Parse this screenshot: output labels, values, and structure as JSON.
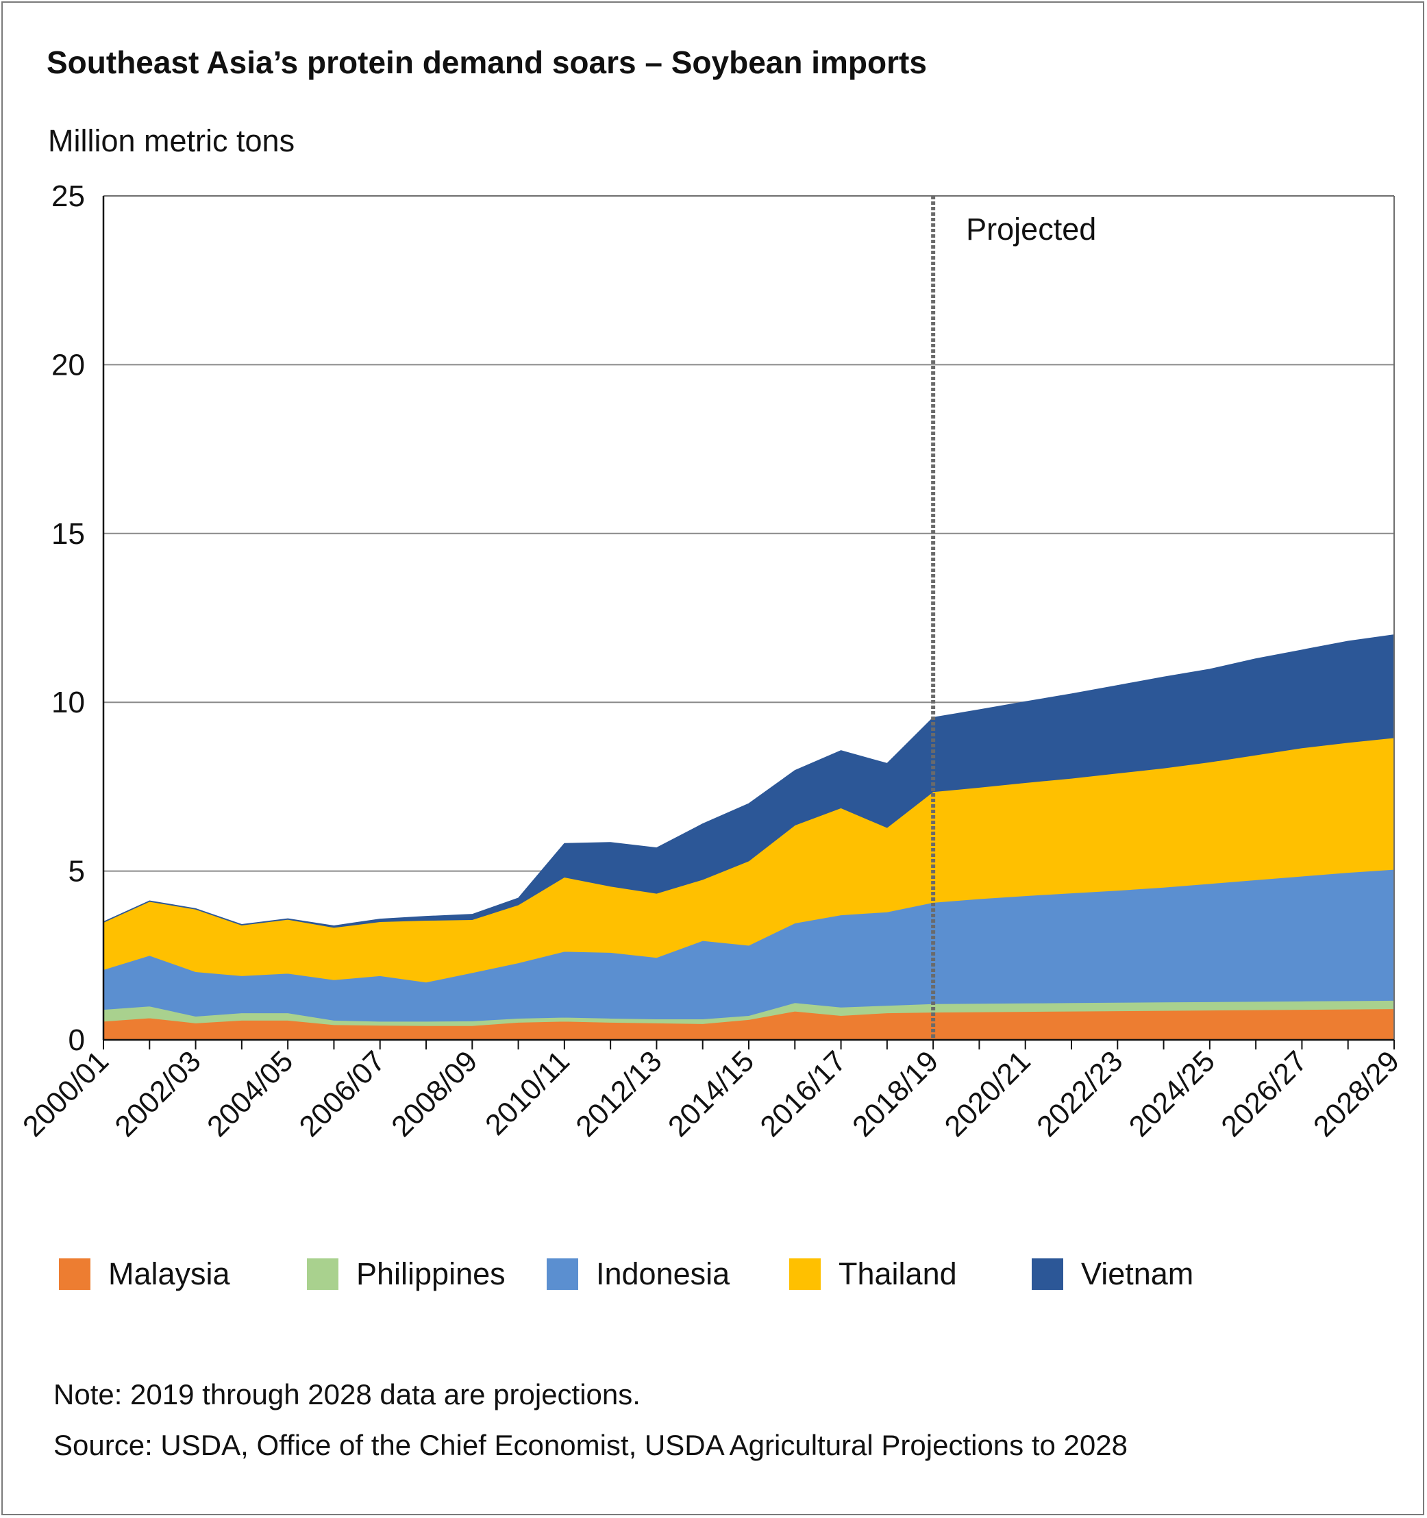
{
  "title": "Southeast Asia’s protein demand soars – Soybean imports",
  "note": "Note: 2019 through 2028 data are projections.",
  "source": "Source: USDA, Office of the Chief Economist, USDA Agricultural Projections to 2028",
  "chart_data": {
    "type": "area",
    "stacked": true,
    "title": "Southeast Asia’s protein demand soars – Soybean imports",
    "ylabel": "Million metric tons",
    "xlabel": "",
    "ylim": [
      0,
      25
    ],
    "yticks": [
      0,
      5,
      10,
      15,
      20,
      25
    ],
    "grid": true,
    "x": [
      "2000/01",
      "2001/02",
      "2002/03",
      "2003/04",
      "2004/05",
      "2005/06",
      "2006/07",
      "2007/08",
      "2008/09",
      "2009/10",
      "2010/11",
      "2011/12",
      "2012/13",
      "2013/14",
      "2014/15",
      "2015/16",
      "2016/17",
      "2017/18",
      "2018/19",
      "2019/20",
      "2020/21",
      "2021/22",
      "2022/23",
      "2023/24",
      "2024/25",
      "2025/26",
      "2026/27",
      "2027/28",
      "2028/29"
    ],
    "xtick_labels": [
      "2000/01",
      "2002/03",
      "2004/05",
      "2006/07",
      "2008/09",
      "2010/11",
      "2012/13",
      "2014/15",
      "2016/17",
      "2018/19",
      "2020/21",
      "2022/23",
      "2024/25",
      "2026/27",
      "2028/29"
    ],
    "projection_start": "2018/19",
    "projection_label": "Projected",
    "legend_position": "bottom",
    "series": [
      {
        "name": "Malaysia",
        "color": "#ED7D31",
        "values": [
          0.55,
          0.65,
          0.5,
          0.58,
          0.58,
          0.45,
          0.43,
          0.42,
          0.42,
          0.52,
          0.55,
          0.52,
          0.5,
          0.48,
          0.6,
          0.85,
          0.72,
          0.8,
          0.82,
          0.83,
          0.84,
          0.85,
          0.86,
          0.87,
          0.88,
          0.89,
          0.9,
          0.91,
          0.92
        ]
      },
      {
        "name": "Philippines",
        "color": "#A9D18E",
        "values": [
          0.35,
          0.35,
          0.2,
          0.22,
          0.22,
          0.13,
          0.12,
          0.13,
          0.14,
          0.12,
          0.12,
          0.12,
          0.12,
          0.14,
          0.12,
          0.25,
          0.25,
          0.22,
          0.25,
          0.25,
          0.25,
          0.25,
          0.25,
          0.25,
          0.25,
          0.25,
          0.25,
          0.25,
          0.25
        ]
      },
      {
        "name": "Indonesia",
        "color": "#5B8FD0",
        "values": [
          1.18,
          1.5,
          1.32,
          1.1,
          1.17,
          1.2,
          1.35,
          1.16,
          1.43,
          1.64,
          1.95,
          1.95,
          1.82,
          2.32,
          2.08,
          2.36,
          2.73,
          2.77,
          3.0,
          3.1,
          3.18,
          3.25,
          3.32,
          3.4,
          3.5,
          3.6,
          3.7,
          3.8,
          3.88
        ]
      },
      {
        "name": "Thailand",
        "color": "#FFC000",
        "values": [
          1.4,
          1.6,
          1.85,
          1.5,
          1.6,
          1.55,
          1.6,
          1.83,
          1.57,
          1.72,
          2.2,
          1.96,
          1.9,
          1.81,
          2.5,
          2.9,
          3.17,
          2.5,
          3.28,
          3.3,
          3.35,
          3.4,
          3.47,
          3.53,
          3.6,
          3.7,
          3.8,
          3.85,
          3.9
        ]
      },
      {
        "name": "Vietnam",
        "color": "#2C5797",
        "values": [
          0.02,
          0.02,
          0.02,
          0.02,
          0.02,
          0.05,
          0.08,
          0.12,
          0.16,
          0.2,
          1.0,
          1.3,
          1.35,
          1.65,
          1.7,
          1.62,
          1.7,
          1.9,
          2.2,
          2.3,
          2.4,
          2.5,
          2.6,
          2.7,
          2.75,
          2.85,
          2.9,
          3.0,
          3.05
        ]
      }
    ]
  }
}
